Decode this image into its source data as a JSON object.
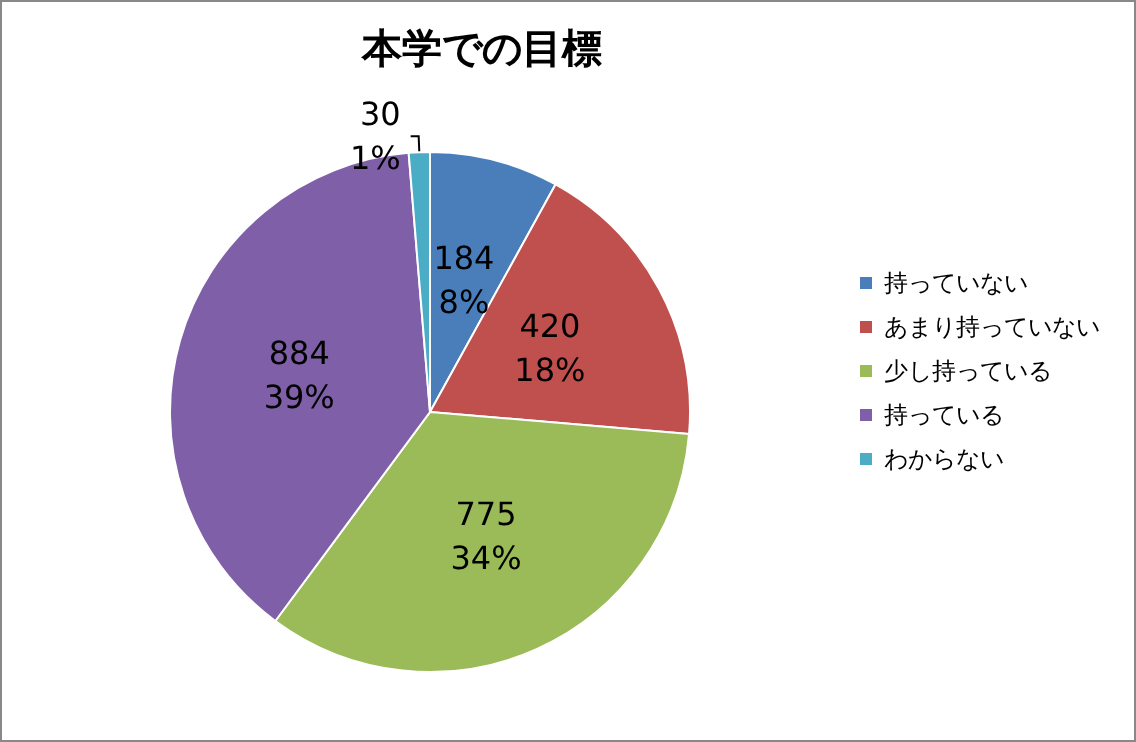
{
  "chart_data": {
    "type": "pie",
    "title": "本学での目標",
    "categories": [
      "持っていない",
      "あまり持っていない",
      "少し持っている",
      "持っている",
      "わからない"
    ],
    "values": [
      184,
      420,
      775,
      884,
      30
    ],
    "colors": [
      "#4a7ebb",
      "#c0504d",
      "#9bbb59",
      "#7f5fa8",
      "#4bacc6"
    ],
    "value_labels": [
      "184\n8%",
      "420\n18%",
      "775\n34%",
      "884\n39%",
      "30\n1%"
    ],
    "legend": "right"
  }
}
